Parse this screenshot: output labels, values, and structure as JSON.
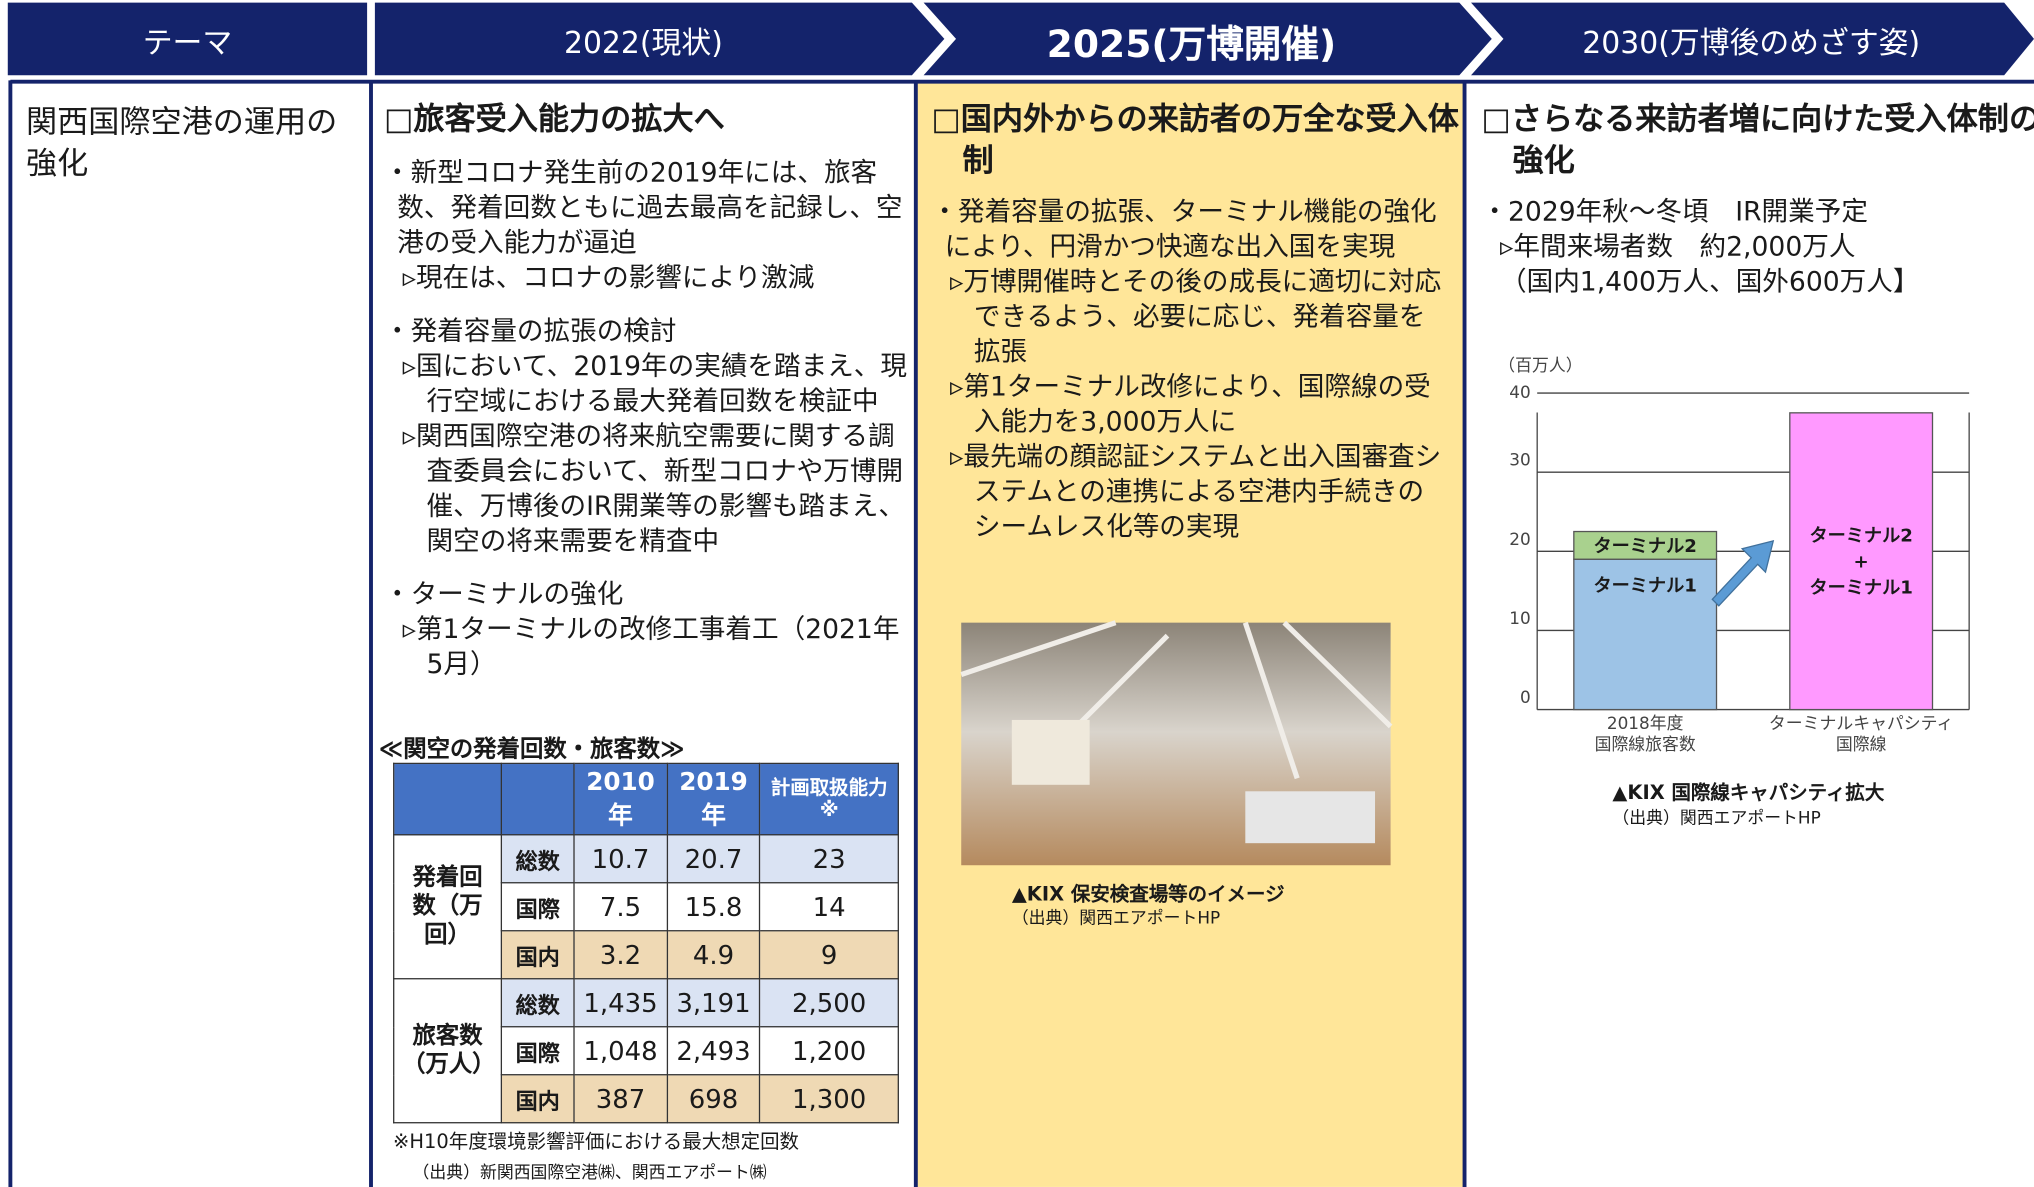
{
  "header": {
    "theme": "テーマ",
    "col2022": "2022(現状)",
    "col2025": "2025(万博開催)",
    "col2030": "2030(万博後のめざす姿)"
  },
  "theme": "関西国際空港の運用の強化",
  "col2022": {
    "heading": "□旅客受入能力の拡大へ",
    "items": [
      {
        "text": "・新型コロナ発生前の2019年には、旅客数、発着回数ともに過去最高を記録し、空港の受入能力が逼迫",
        "subs": [
          "▹現在は、コロナの影響により激減"
        ]
      },
      {
        "text": "・発着容量の拡張の検討",
        "subs": [
          "▹国において、2019年の実績を踏まえ、現行空域における最大発着回数を検証中",
          "▹関西国際空港の将来航空需要に関する調査委員会において、新型コロナや万博開催、万博後のIR開業等の影響も踏まえ、関空の将来需要を精査中"
        ]
      },
      {
        "text": "・ターミナルの強化",
        "subs": [
          "▹第1ターミナルの改修工事着工（2021年5月）"
        ]
      }
    ],
    "table": {
      "caption": "≪関空の発着回数・旅客数≫",
      "headers": [
        "2010年",
        "2019年",
        "計画取扱能力 ※"
      ],
      "groups": [
        {
          "label": "発着回数（万回）",
          "rows": [
            {
              "label": "総数",
              "values": [
                "10.7",
                "20.7",
                "23"
              ]
            },
            {
              "label": "国際",
              "values": [
                "7.5",
                "15.8",
                "14"
              ]
            },
            {
              "label": "国内",
              "values": [
                "3.2",
                "4.9",
                "9"
              ]
            }
          ]
        },
        {
          "label": "旅客数（万人）",
          "rows": [
            {
              "label": "総数",
              "values": [
                "1,435",
                "3,191",
                "2,500"
              ]
            },
            {
              "label": "国際",
              "values": [
                "1,048",
                "2,493",
                "1,200"
              ]
            },
            {
              "label": "国内",
              "values": [
                "387",
                "698",
                "1,300"
              ]
            }
          ]
        }
      ],
      "note": "※H10年度環境影響評価における最大想定回数",
      "source": "（出典）新関西国際空港㈱、関西エアポート㈱"
    }
  },
  "col2025": {
    "heading": "□国内外からの来訪者の万全な受入体制",
    "items": [
      {
        "text": "・発着容量の拡張、ターミナル機能の強化により、円滑かつ快適な出入国を実現",
        "subs": [
          "▹万博開催時とその後の成長に適切に対応できるよう、必要に応じ、発着容量を拡張",
          "▹第1ターミナル改修により、国際線の受入能力を3,000万人に",
          "▹最先端の顔認証システムと出入国審査システムとの連携による空港内手続きのシームレス化等の実現"
        ]
      }
    ],
    "photo_caption": "▲KIX 保安検査場等のイメージ",
    "photo_source": "（出典）関西エアポートHP"
  },
  "col2030": {
    "heading": "□さらなる来訪者増に向けた受入体制の強化",
    "items": [
      {
        "text": "・2029年秋～冬頃　IR開業予定",
        "subs": [
          "▹年間来場者数　約2,000万人",
          "（国内1,400万人、国外600万人】"
        ]
      }
    ],
    "chart": {
      "type": "bar",
      "y_label": "（百万人）",
      "categories": [
        "2018年度\n国際線旅客数",
        "ターミナルキャパシティ\n国際線"
      ],
      "series": [
        {
          "name": "ターミナル1",
          "color": "#9dc3e6",
          "values": [
            19,
            null
          ]
        },
        {
          "name": "ターミナル2",
          "color": "#a9d18e",
          "values": [
            3.5,
            null
          ]
        },
        {
          "name": "ターミナル2\n+\nターミナル1",
          "color": "#ff99ff",
          "values": [
            null,
            37.5
          ]
        }
      ],
      "ylim": [
        0,
        40
      ],
      "yticks": [
        0,
        10,
        20,
        30,
        40
      ],
      "grid": true,
      "caption": "▲KIX 国際線キャパシティ拡大",
      "source": "（出典）関西エアポートHP"
    }
  }
}
